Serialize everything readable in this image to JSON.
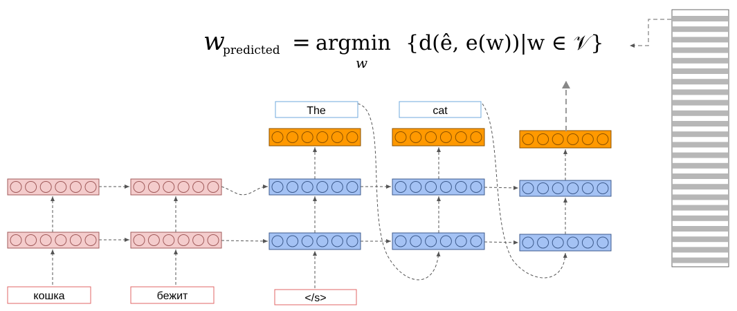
{
  "formula": {
    "lhs_var": "w",
    "lhs_sub": "predicted",
    "eq": "=",
    "op": "argmin",
    "op_sub": "w",
    "body": "{d(ê, e(w))|w ∈ 𝒱}"
  },
  "encoder": {
    "inputs": [
      "кошка",
      "бежит"
    ]
  },
  "decoder": {
    "start_token": "</s>",
    "outputs": [
      "The",
      "cat"
    ]
  },
  "colors": {
    "encoder_fill": "#f4cccc",
    "encoder_stroke": "#a05a5a",
    "decoder_fill": "#a4c2f4",
    "decoder_stroke": "#3c5a8c",
    "output_fill": "#ff9900",
    "output_stroke": "#8a5000",
    "input_box_stroke": "#e06666",
    "output_box_stroke": "#6fa8dc",
    "arrow": "#555555",
    "vocab_stripe": "#b7b7b7"
  }
}
